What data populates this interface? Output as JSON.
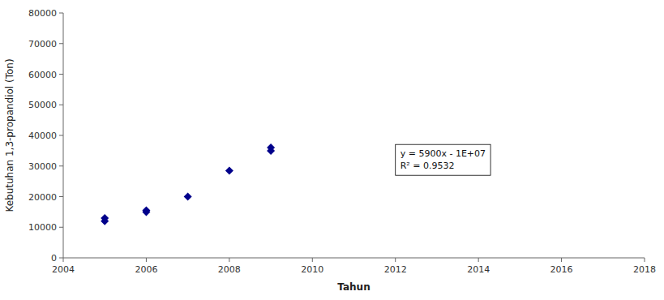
{
  "chart_data": {
    "type": "scatter",
    "xlabel": "Tahun",
    "ylabel": "Kebutuhan 1,3-propandiol (Ton)",
    "x": [
      2005,
      2005,
      2006,
      2006,
      2007,
      2008,
      2009,
      2009
    ],
    "values": [
      13000,
      12000,
      15500,
      15000,
      20000,
      28500,
      36000,
      35000
    ],
    "color": "#00008B",
    "marker": "diamond",
    "xlim": [
      2004,
      2018
    ],
    "ylim": [
      0,
      80000
    ],
    "xticks": [
      2004,
      2006,
      2008,
      2010,
      2012,
      2014,
      2016,
      2018
    ],
    "yticks": [
      0,
      10000,
      20000,
      30000,
      40000,
      50000,
      60000,
      70000,
      80000
    ],
    "grid": false,
    "annotations": [
      {
        "lines": [
          "y = 5900x - 1E+07",
          "R² = 0.9532"
        ],
        "x": 2012.0,
        "y": 32000
      }
    ]
  }
}
